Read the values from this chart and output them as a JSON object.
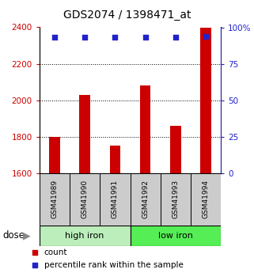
{
  "title": "GDS2074 / 1398471_at",
  "samples": [
    "GSM41989",
    "GSM41990",
    "GSM41991",
    "GSM41992",
    "GSM41993",
    "GSM41994"
  ],
  "counts": [
    1800,
    2030,
    1750,
    2080,
    1860,
    2400
  ],
  "percentiles": [
    93,
    93,
    93,
    93,
    93,
    94
  ],
  "groups": [
    {
      "label": "high iron",
      "color": "#bbeebb"
    },
    {
      "label": "low iron",
      "color": "#55ee55"
    }
  ],
  "ylim_left": [
    1600,
    2400
  ],
  "ylim_right": [
    0,
    100
  ],
  "yticks_left": [
    1600,
    1800,
    2000,
    2200,
    2400
  ],
  "ytick_labels_left": [
    "1600",
    "1800",
    "2000",
    "2200",
    "2400"
  ],
  "yticks_right": [
    0,
    25,
    50,
    75,
    100
  ],
  "ytick_labels_right": [
    "0",
    "25",
    "50",
    "75",
    "100%"
  ],
  "bar_color": "#cc0000",
  "dot_color": "#2222cc",
  "title_fontsize": 10,
  "axis_color_left": "#cc0000",
  "axis_color_right": "#2222cc",
  "sample_box_color": "#cccccc",
  "grid_yticks": [
    1800,
    2000,
    2200
  ],
  "bar_width": 0.35
}
